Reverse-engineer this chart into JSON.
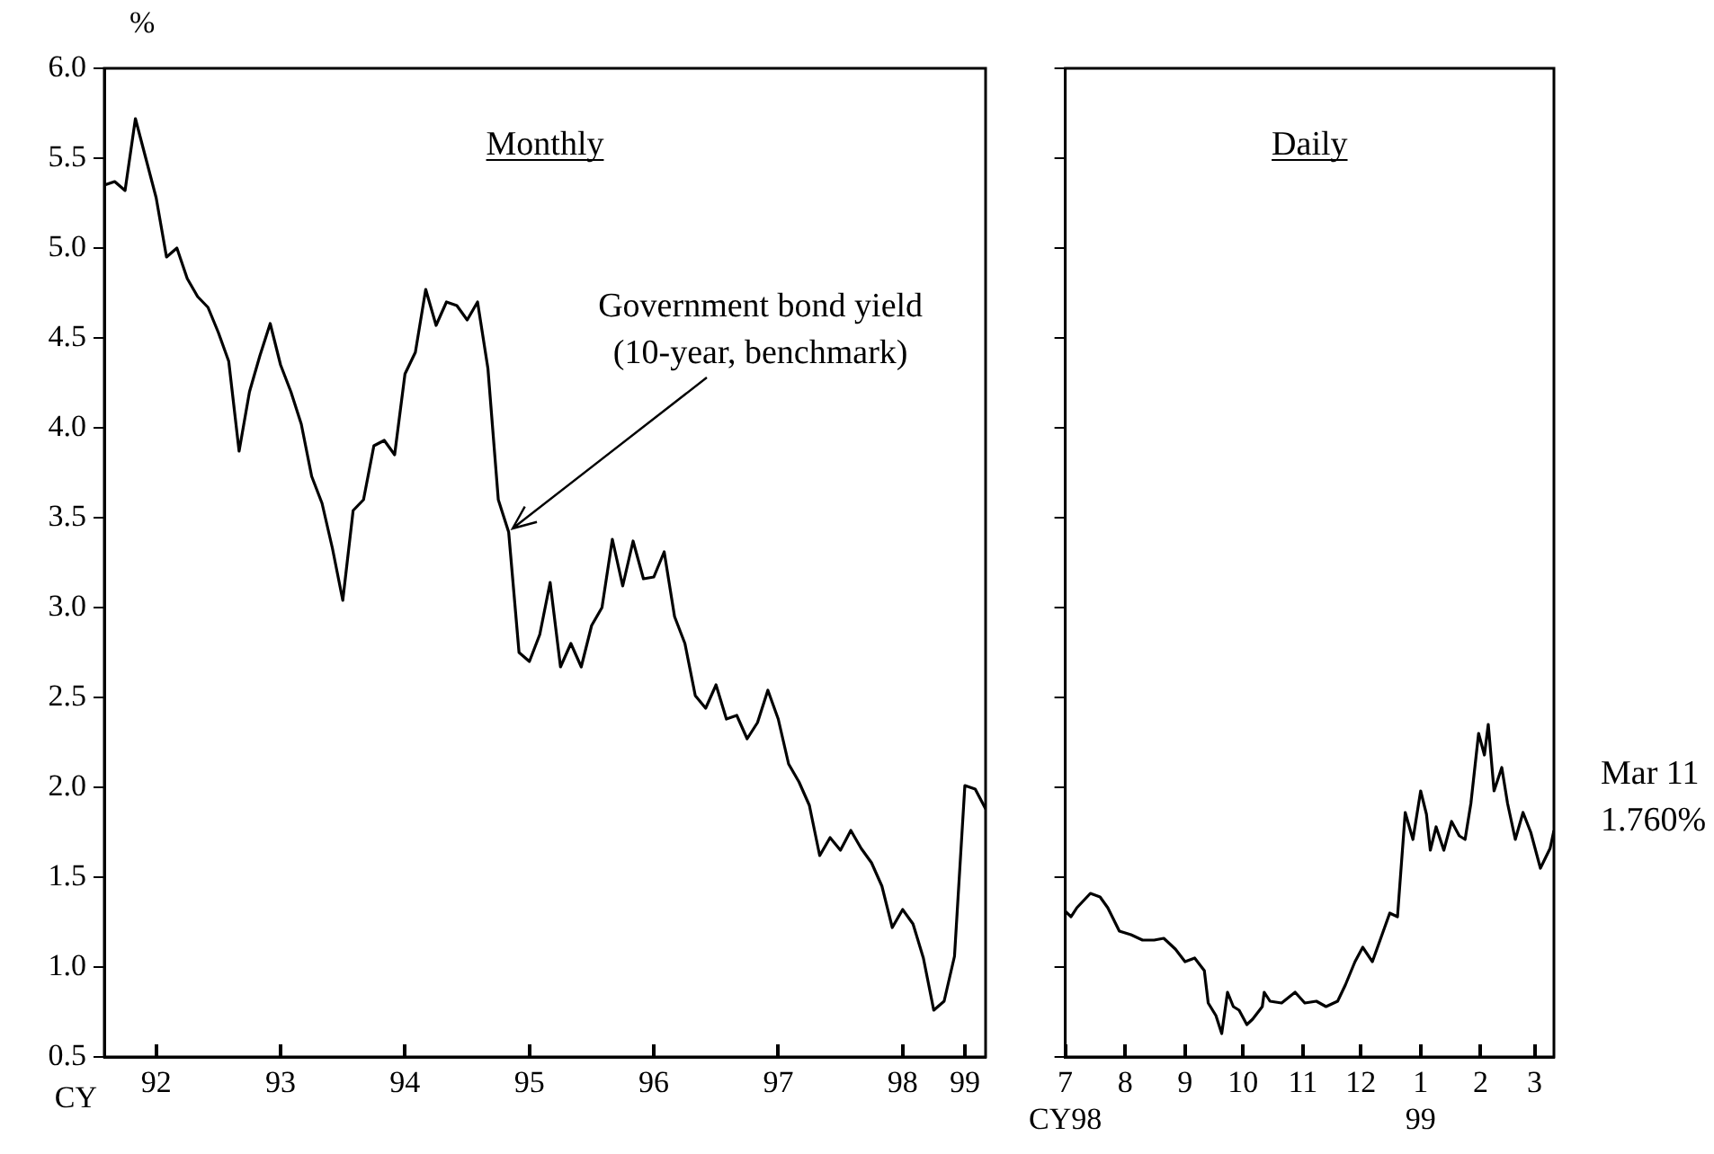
{
  "chart_data": [
    {
      "type": "line",
      "title": "Monthly",
      "ylabel": "%",
      "xlabel": "CY",
      "marker": "none",
      "line_style": "solid",
      "grid": false,
      "x": [
        "1992-02",
        "1992-03",
        "1992-04",
        "1992-05",
        "1992-06",
        "1992-07",
        "1992-08",
        "1992-09",
        "1992-10",
        "1992-11",
        "1992-12",
        "1993-01",
        "1993-02",
        "1993-03",
        "1993-04",
        "1993-05",
        "1993-06",
        "1993-07",
        "1993-08",
        "1993-09",
        "1993-10",
        "1993-11",
        "1993-12",
        "1994-01",
        "1994-02",
        "1994-03",
        "1994-04",
        "1994-05",
        "1994-06",
        "1994-07",
        "1994-08",
        "1994-09",
        "1994-10",
        "1994-11",
        "1994-12",
        "1995-01",
        "1995-02",
        "1995-03",
        "1995-04",
        "1995-05",
        "1995-06",
        "1995-07",
        "1995-08",
        "1995-09",
        "1995-10",
        "1995-11",
        "1995-12",
        "1996-01",
        "1996-02",
        "1996-03",
        "1996-04",
        "1996-05",
        "1996-06",
        "1996-07",
        "1996-08",
        "1996-09",
        "1996-10",
        "1996-11",
        "1996-12",
        "1997-01",
        "1997-02",
        "1997-03",
        "1997-04",
        "1997-05",
        "1997-06",
        "1997-07",
        "1997-08",
        "1997-09",
        "1997-10",
        "1997-11",
        "1997-12",
        "1998-01",
        "1998-02",
        "1998-03",
        "1998-04",
        "1998-05",
        "1998-06",
        "1998-07",
        "1998-08",
        "1998-09",
        "1998-10",
        "1998-11",
        "1998-12",
        "1999-01",
        "1999-02",
        "1999-03"
      ],
      "series": [
        {
          "color": "#000000",
          "values": [
            5.35,
            5.37,
            5.32,
            5.72,
            5.5,
            5.28,
            4.95,
            5.0,
            4.83,
            4.73,
            4.67,
            4.53,
            4.37,
            3.87,
            4.2,
            4.4,
            4.58,
            4.35,
            4.2,
            4.02,
            3.73,
            3.58,
            3.33,
            3.04,
            3.54,
            3.6,
            3.9,
            3.93,
            3.85,
            4.3,
            4.42,
            4.77,
            4.57,
            4.7,
            4.68,
            4.6,
            4.7,
            4.33,
            3.6,
            3.42,
            2.75,
            2.7,
            2.85,
            3.14,
            2.67,
            2.8,
            2.67,
            2.9,
            3.0,
            3.38,
            3.12,
            3.37,
            3.16,
            3.17,
            3.31,
            2.95,
            2.8,
            2.51,
            2.44,
            2.57,
            2.38,
            2.4,
            2.27,
            2.36,
            2.54,
            2.38,
            2.13,
            2.03,
            1.9,
            1.62,
            1.72,
            1.65,
            1.76,
            1.66,
            1.58,
            1.45,
            1.22,
            1.32,
            1.24,
            1.05,
            0.76,
            0.81,
            1.06,
            2.01,
            1.99,
            1.88
          ]
        }
      ],
      "xlim": [
        "1992-02",
        "1999-03"
      ],
      "xticks": [
        {
          "value": "1992-07",
          "label": "92"
        },
        {
          "value": "1993-07",
          "label": "93"
        },
        {
          "value": "1994-07",
          "label": "94"
        },
        {
          "value": "1995-07",
          "label": "95"
        },
        {
          "value": "1996-07",
          "label": "96"
        },
        {
          "value": "1997-07",
          "label": "97"
        },
        {
          "value": "1998-07",
          "label": "98"
        },
        {
          "value": "1999-01",
          "label": "99"
        }
      ],
      "ylim": [
        0.5,
        6.0
      ],
      "yticks": [
        0.5,
        {
          "value": 1,
          "label": "1.0"
        },
        1.5,
        {
          "value": 2,
          "label": "2.0"
        },
        2.5,
        {
          "value": 3,
          "label": "3.0"
        },
        3.5,
        {
          "value": 4,
          "label": "4.0"
        },
        4.5,
        {
          "value": 5,
          "label": "5.0"
        },
        5.5,
        {
          "value": 6,
          "label": "6.0"
        }
      ],
      "annotations": [
        {
          "text": "Government bond yield\n(10-year, benchmark)",
          "x": "1995-05",
          "y": 3.42
        }
      ]
    },
    {
      "type": "line",
      "title": "Daily",
      "marker": "none",
      "line_style": "solid",
      "grid": false,
      "tick_labels": "x",
      "x": [
        "1998-07-01",
        "1998-07-04",
        "1998-07-07",
        "1998-07-14",
        "1998-07-19",
        "1998-07-23",
        "1998-07-29",
        "1998-08-04",
        "1998-08-10",
        "1998-08-16",
        "1998-08-21",
        "1998-08-27",
        "1998-09-01",
        "1998-09-06",
        "1998-09-11",
        "1998-09-13",
        "1998-09-17",
        "1998-09-20",
        "1998-09-23",
        "1998-09-26",
        "1998-09-29",
        "1998-10-03",
        "1998-10-06",
        "1998-10-11",
        "1998-10-12",
        "1998-10-15",
        "1998-10-21",
        "1998-10-28",
        "1998-11-02",
        "1998-11-08",
        "1998-11-13",
        "1998-11-19",
        "1998-11-23",
        "1998-11-28",
        "1998-12-02",
        "1998-12-07",
        "1998-12-11",
        "1998-12-16",
        "1998-12-20",
        "1998-12-24",
        "1998-12-28",
        "1999-01-01",
        "1999-01-04",
        "1999-01-06",
        "1999-01-09",
        "1999-01-13",
        "1999-01-17",
        "1999-01-21",
        "1999-01-24",
        "1999-01-27",
        "1999-01-31",
        "1999-02-03",
        "1999-02-05",
        "1999-02-08",
        "1999-02-12",
        "1999-02-15",
        "1999-02-19",
        "1999-02-23",
        "1999-02-27",
        "1999-03-04",
        "1999-03-09",
        "1999-03-11"
      ],
      "series": [
        {
          "color": "#000000",
          "values": [
            1.31,
            1.28,
            1.33,
            1.41,
            1.39,
            1.33,
            1.2,
            1.18,
            1.15,
            1.15,
            1.16,
            1.1,
            1.03,
            1.05,
            0.98,
            0.8,
            0.73,
            0.63,
            0.86,
            0.78,
            0.76,
            0.68,
            0.71,
            0.78,
            0.86,
            0.81,
            0.8,
            0.86,
            0.8,
            0.81,
            0.78,
            0.81,
            0.9,
            1.03,
            1.11,
            1.03,
            1.15,
            1.3,
            1.28,
            1.86,
            1.71,
            1.98,
            1.85,
            1.65,
            1.78,
            1.65,
            1.81,
            1.73,
            1.71,
            1.91,
            2.3,
            2.18,
            2.35,
            1.98,
            2.11,
            1.91,
            1.71,
            1.86,
            1.75,
            1.55,
            1.66,
            1.76
          ]
        }
      ],
      "xlim": [
        "1998-07-01",
        "1999-03-11"
      ],
      "xticks": [
        {
          "value": "1998-07-01",
          "label": "7\nCY98"
        },
        {
          "value": "1998-08-01",
          "label": "8"
        },
        {
          "value": "1998-09-01",
          "label": "9"
        },
        {
          "value": "1998-10-01",
          "label": "10"
        },
        {
          "value": "1998-11-01",
          "label": "11"
        },
        {
          "value": "1998-12-01",
          "label": "12"
        },
        {
          "value": "1999-01-01",
          "label": "1\n99"
        },
        {
          "value": "1999-02-01",
          "label": "2"
        },
        {
          "value": "1999-03-01",
          "label": "3"
        }
      ],
      "ylim": [
        0.5,
        6.0
      ],
      "yticks": [
        0.5,
        1,
        1.5,
        2,
        2.5,
        3,
        3.5,
        4,
        4.5,
        5,
        5.5,
        6
      ],
      "annotations": [
        {
          "text": "Mar 11\n1.760%",
          "x": "1999-03-11",
          "y": 1.76
        }
      ]
    }
  ]
}
